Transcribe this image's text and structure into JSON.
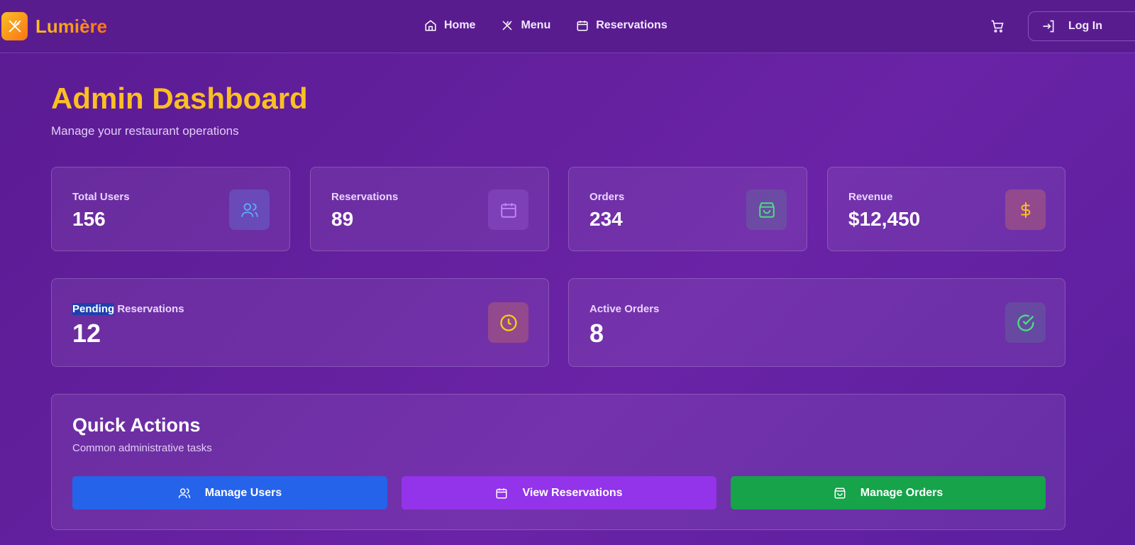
{
  "nav": {
    "brand": "Lumière",
    "links": [
      {
        "label": "Home",
        "icon": "home-icon"
      },
      {
        "label": "Menu",
        "icon": "utensils-icon"
      },
      {
        "label": "Reservations",
        "icon": "calendar-icon"
      }
    ],
    "login": "Log In"
  },
  "header": {
    "title": "Admin Dashboard",
    "subtitle": "Manage your restaurant operations"
  },
  "stats": [
    {
      "label": "Total Users",
      "value": "156",
      "icon": "users-icon",
      "color": "#60a5fa"
    },
    {
      "label": "Reservations",
      "value": "89",
      "icon": "calendar-icon",
      "color": "#c084fc"
    },
    {
      "label": "Orders",
      "value": "234",
      "icon": "shopping-bag-icon",
      "color": "#4ade80"
    },
    {
      "label": "Revenue",
      "value": "$12,450",
      "icon": "dollar-icon",
      "color": "#fbbf24"
    }
  ],
  "stats2": [
    {
      "label_selected": "Pending",
      "label_rest": " Reservations",
      "value": "12",
      "icon": "clock-icon",
      "color": "#facc15"
    },
    {
      "label": "Active Orders",
      "value": "8",
      "icon": "check-circle-icon",
      "color": "#4ade80"
    }
  ],
  "quick": {
    "title": "Quick Actions",
    "subtitle": "Common administrative tasks",
    "buttons": [
      {
        "label": "Manage Users",
        "color": "#2563eb"
      },
      {
        "label": "View Reservations",
        "color": "#9333ea"
      },
      {
        "label": "Manage Orders",
        "color": "#16a34a"
      }
    ]
  }
}
